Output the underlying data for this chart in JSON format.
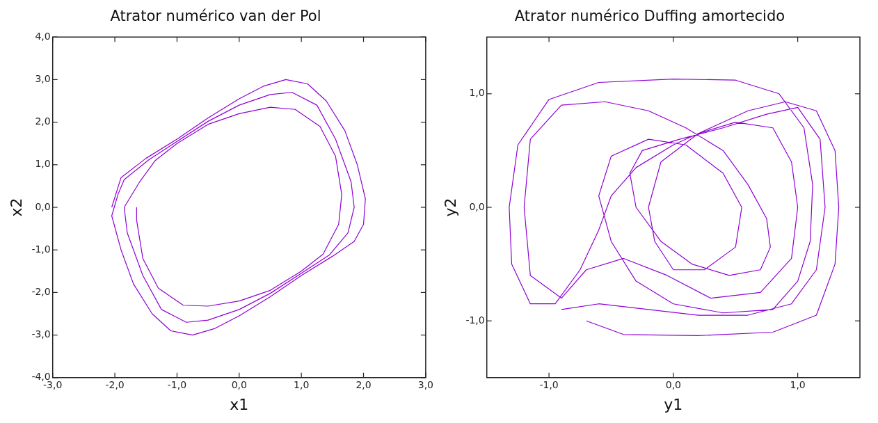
{
  "chart_data": [
    {
      "type": "line",
      "title": "Atrator numérico van der Pol",
      "xlabel": "x1",
      "ylabel": "x2",
      "xlim": [
        -3,
        3
      ],
      "ylim": [
        -4,
        4
      ],
      "xticks": [
        {
          "value": -3,
          "label": "-3,0"
        },
        {
          "value": -2,
          "label": "-2,0"
        },
        {
          "value": -1,
          "label": "-1,0"
        },
        {
          "value": 0,
          "label": "0,0"
        },
        {
          "value": 1,
          "label": "1,0"
        },
        {
          "value": 2,
          "label": "2,0"
        },
        {
          "value": 3,
          "label": "3,0"
        }
      ],
      "yticks": [
        {
          "value": -4,
          "label": "-4,0"
        },
        {
          "value": -3,
          "label": "-3,0"
        },
        {
          "value": -2,
          "label": "-2,0"
        },
        {
          "value": -1,
          "label": "-1,0"
        },
        {
          "value": 0,
          "label": "0,0"
        },
        {
          "value": 1,
          "label": "1,0"
        },
        {
          "value": 2,
          "label": "2,0"
        },
        {
          "value": 3,
          "label": "3,0"
        },
        {
          "value": 4,
          "label": "4,0"
        }
      ],
      "grid": false,
      "legend": false,
      "marker": "none",
      "line_style": "solid",
      "series": [
        {
          "color": "#8f00d4",
          "x": [
            -2.05,
            -1.9,
            -1.5,
            -1.0,
            -0.5,
            0,
            0.4,
            0.75,
            1.1,
            1.4,
            1.7,
            1.9,
            2.03,
            2.0,
            1.85,
            1.5,
            1.0,
            0.5,
            0,
            -0.4,
            -0.75,
            -1.1,
            -1.4,
            -1.7,
            -1.9,
            -2.05,
            -1.95,
            -1.85,
            -1.45,
            -1.0,
            -0.5,
            0,
            0.5,
            0.85,
            1.25,
            1.55,
            1.8,
            1.85,
            1.75,
            1.45,
            1.0,
            0.5,
            0,
            -0.5,
            -0.85,
            -1.25,
            -1.55,
            -1.8,
            -1.85,
            -1.6,
            -1.35,
            -1.0,
            -0.5,
            0,
            0.5,
            0.9,
            1.3,
            1.55,
            1.65,
            1.6,
            1.35,
            1.0,
            0.5,
            0,
            -0.5,
            -0.9,
            -1.3,
            -1.55,
            -1.65,
            -1.65
          ],
          "values": [
            0,
            0.7,
            1.15,
            1.6,
            2.1,
            2.55,
            2.85,
            3.0,
            2.9,
            2.5,
            1.8,
            1.0,
            0.2,
            -0.4,
            -0.8,
            -1.15,
            -1.6,
            -2.1,
            -2.55,
            -2.85,
            -3.0,
            -2.9,
            -2.5,
            -1.8,
            -1.0,
            -0.2,
            0.3,
            0.65,
            1.12,
            1.55,
            2.02,
            2.4,
            2.65,
            2.7,
            2.4,
            1.6,
            0.6,
            0,
            -0.6,
            -1.12,
            -1.55,
            -2.02,
            -2.4,
            -2.65,
            -2.7,
            -2.4,
            -1.6,
            -0.6,
            0,
            0.6,
            1.1,
            1.5,
            1.95,
            2.2,
            2.35,
            2.3,
            1.9,
            1.2,
            0.3,
            -0.4,
            -1.1,
            -1.5,
            -1.95,
            -2.2,
            -2.32,
            -2.3,
            -1.9,
            -1.2,
            -0.3,
            0
          ]
        }
      ]
    },
    {
      "type": "line",
      "title": "Atrator numérico Duffing amortecido",
      "xlabel": "y1",
      "ylabel": "y2",
      "xlim": [
        -1.5,
        1.5
      ],
      "ylim": [
        -1.5,
        1.5
      ],
      "xticks": [
        {
          "value": -1,
          "label": "-1,0"
        },
        {
          "value": 0,
          "label": "0,0"
        },
        {
          "value": 1,
          "label": "1,0"
        }
      ],
      "yticks": [
        {
          "value": -1,
          "label": "-1,0"
        },
        {
          "value": 0,
          "label": "0,0"
        },
        {
          "value": 1,
          "label": "1,0"
        }
      ],
      "grid": false,
      "legend": false,
      "marker": "none",
      "line_style": "solid",
      "series": [
        {
          "color": "#8f00d4",
          "x": [
            -0.7,
            -0.4,
            0.2,
            0.8,
            1.15,
            1.3,
            1.33,
            1.3,
            1.15,
            0.9,
            0.6,
            0.3,
            0,
            -0.3,
            -0.5,
            -0.6,
            -0.75,
            -0.95,
            -1.15,
            -1.3,
            -1.32,
            -1.25,
            -1.0,
            -0.6,
            0,
            0.5,
            0.85,
            1.05,
            1.12,
            1.1,
            1.0,
            0.8,
            0.4,
            0,
            -0.3,
            -0.5,
            -0.6,
            -0.5,
            -0.2,
            0.1,
            0.4,
            0.55,
            0.5,
            0.25,
            0,
            -0.15,
            -0.2,
            -0.1,
            0.2,
            0.5,
            0.8,
            0.95,
            1.0,
            0.95,
            0.7,
            0.3,
            -0.05,
            -0.4,
            -0.7,
            -0.9,
            -1.15,
            -1.2,
            -1.15,
            -0.9,
            -0.55,
            -0.2,
            0.1,
            0.4,
            0.6,
            0.75,
            0.78,
            0.7,
            0.45,
            0.15,
            -0.1,
            -0.3,
            -0.35,
            -0.25,
            0.05,
            0.4,
            0.75,
            1.0,
            1.18,
            1.22,
            1.15,
            0.95,
            0.6,
            0.2,
            -0.2,
            -0.6,
            -0.9
          ],
          "values": [
            -1.0,
            -1.12,
            -1.13,
            -1.1,
            -0.95,
            -0.5,
            0,
            0.5,
            0.85,
            0.93,
            0.85,
            0.7,
            0.55,
            0.35,
            0.1,
            -0.2,
            -0.55,
            -0.85,
            -0.85,
            -0.5,
            0,
            0.55,
            0.95,
            1.1,
            1.13,
            1.12,
            1.0,
            0.7,
            0.2,
            -0.3,
            -0.65,
            -0.9,
            -0.93,
            -0.85,
            -0.65,
            -0.3,
            0.1,
            0.45,
            0.6,
            0.55,
            0.3,
            0,
            -0.35,
            -0.55,
            -0.55,
            -0.3,
            0,
            0.4,
            0.65,
            0.75,
            0.7,
            0.4,
            0,
            -0.45,
            -0.75,
            -0.8,
            -0.6,
            -0.45,
            -0.55,
            -0.8,
            -0.6,
            0,
            0.6,
            0.9,
            0.93,
            0.85,
            0.7,
            0.5,
            0.2,
            -0.1,
            -0.35,
            -0.55,
            -0.6,
            -0.5,
            -0.3,
            0,
            0.3,
            0.5,
            0.6,
            0.7,
            0.82,
            0.88,
            0.6,
            0,
            -0.55,
            -0.85,
            -0.95,
            -0.95,
            -0.9,
            -0.85,
            -0.9
          ]
        }
      ]
    }
  ]
}
